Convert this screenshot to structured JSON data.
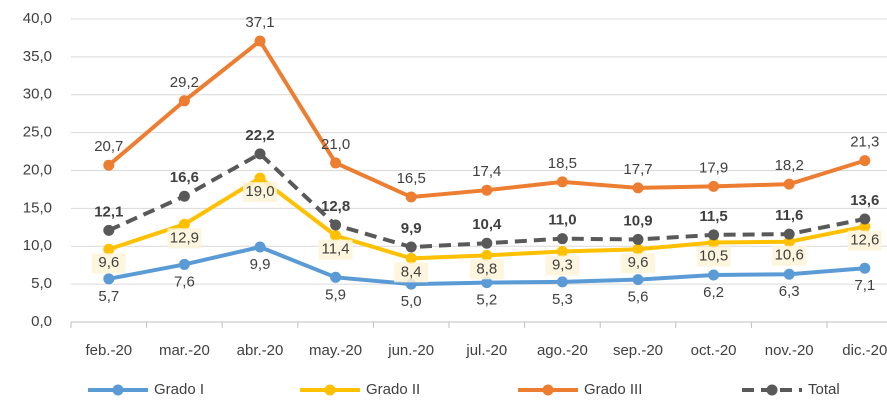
{
  "chart_data": {
    "type": "line",
    "categories": [
      "feb.-20",
      "mar.-20",
      "abr.-20",
      "may.-20",
      "jun.-20",
      "jul.-20",
      "ago.-20",
      "sep.-20",
      "oct.-20",
      "nov.-20",
      "dic.-20"
    ],
    "ylim": [
      0,
      40
    ],
    "yticks": [
      {
        "value": 0,
        "label": "0,0"
      },
      {
        "value": 5,
        "label": "5,0"
      },
      {
        "value": 10,
        "label": "10,0"
      },
      {
        "value": 15,
        "label": "15,0"
      },
      {
        "value": 20,
        "label": "20,0"
      },
      {
        "value": 25,
        "label": "25,0"
      },
      {
        "value": 30,
        "label": "30,0"
      },
      {
        "value": 35,
        "label": "35,0"
      },
      {
        "value": 40,
        "label": "40,0"
      }
    ],
    "grid": true,
    "legend": "bottom",
    "series": [
      {
        "name": "Grado I",
        "color": "#5b9bd5",
        "values": [
          5.7,
          7.6,
          9.9,
          5.9,
          5.0,
          5.2,
          5.3,
          5.6,
          6.2,
          6.3,
          7.1
        ],
        "value_labels": [
          "5,7",
          "7,6",
          "9,9",
          "5,9",
          "5,0",
          "5,2",
          "5,3",
          "5,6",
          "6,2",
          "6,3",
          "7,1"
        ]
      },
      {
        "name": "Grado II",
        "color": "#ffc000",
        "values": [
          9.6,
          12.9,
          19.0,
          11.4,
          8.4,
          8.8,
          9.3,
          9.6,
          10.5,
          10.6,
          12.6
        ],
        "value_labels": [
          "9,6",
          "12,9",
          "19,0",
          "11,4",
          "8,4",
          "8,8",
          "9,3",
          "9,6",
          "10,5",
          "10,6",
          "12,6"
        ]
      },
      {
        "name": "Grado III",
        "color": "#ed7d31",
        "values": [
          20.7,
          29.2,
          37.1,
          21.0,
          16.5,
          17.4,
          18.5,
          17.7,
          17.9,
          18.2,
          21.3
        ],
        "value_labels": [
          "20,7",
          "29,2",
          "37,1",
          "21,0",
          "16,5",
          "17,4",
          "18,5",
          "17,7",
          "17,9",
          "18,2",
          "21,3"
        ]
      },
      {
        "name": "Total",
        "color": "#595959",
        "dashed": true,
        "bold_labels": true,
        "values": [
          12.1,
          16.6,
          22.2,
          12.8,
          9.9,
          10.4,
          11.0,
          10.9,
          11.5,
          11.6,
          13.6
        ],
        "value_labels": [
          "12,1",
          "16,6",
          "22,2",
          "12,8",
          "9,9",
          "10,4",
          "11,0",
          "10,9",
          "11,5",
          "11,6",
          "13,6"
        ]
      }
    ]
  }
}
